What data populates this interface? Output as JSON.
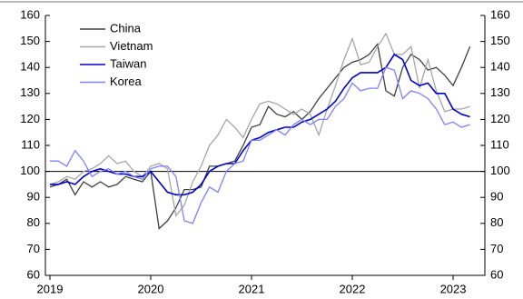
{
  "chart_data": {
    "type": "line",
    "x": [
      2019,
      2019.083,
      2019.167,
      2019.25,
      2019.333,
      2019.417,
      2019.5,
      2019.583,
      2019.667,
      2019.75,
      2019.833,
      2019.917,
      2020,
      2020.083,
      2020.167,
      2020.25,
      2020.333,
      2020.417,
      2020.5,
      2020.583,
      2020.667,
      2020.75,
      2020.833,
      2020.917,
      2021,
      2021.083,
      2021.167,
      2021.25,
      2021.333,
      2021.417,
      2021.5,
      2021.583,
      2021.667,
      2021.75,
      2021.833,
      2021.917,
      2022,
      2022.083,
      2022.167,
      2022.25,
      2022.333,
      2022.417,
      2022.5,
      2022.583,
      2022.667,
      2022.75,
      2022.833,
      2022.917,
      2023,
      2023.083,
      2023.167
    ],
    "series": [
      {
        "name": "China",
        "color": "#404040",
        "values": [
          94,
          95,
          97,
          91,
          96,
          94,
          96,
          94,
          95,
          98,
          97,
          96,
          100,
          78,
          81,
          86,
          93,
          93,
          94,
          102,
          102,
          103,
          104,
          110,
          117,
          118,
          125,
          122,
          121,
          123,
          120,
          123,
          128,
          132,
          136,
          140,
          142,
          143,
          145,
          149,
          131,
          129,
          140,
          145,
          143,
          139,
          140,
          137,
          133,
          140,
          148
        ]
      },
      {
        "name": "Vietnam",
        "color": "#a6a6a6",
        "values": [
          95,
          96,
          98,
          97,
          100,
          101,
          103,
          106,
          103,
          104,
          100,
          98,
          102,
          103,
          101,
          83,
          87,
          96,
          102,
          110,
          114,
          120,
          117,
          113,
          120,
          126,
          127,
          126,
          124,
          122,
          124,
          122,
          114,
          124,
          133,
          143,
          151,
          141,
          142,
          148,
          153,
          145,
          145,
          148,
          132,
          143,
          131,
          123,
          124,
          124,
          125
        ]
      },
      {
        "name": "Taiwan",
        "color": "#0000cc",
        "values": [
          95,
          95,
          96,
          95,
          98,
          100,
          101,
          100,
          99,
          99,
          98,
          98,
          100,
          96,
          92,
          91,
          91,
          92,
          95,
          100,
          102,
          103,
          103,
          108,
          112,
          113,
          115,
          116,
          117,
          117,
          119,
          120,
          122,
          124,
          127,
          132,
          136,
          138,
          138,
          138,
          140,
          145,
          143,
          135,
          133,
          134,
          130,
          130,
          124,
          122,
          121
        ]
      },
      {
        "name": "Korea",
        "color": "#8080ff",
        "values": [
          104,
          104,
          102,
          108,
          104,
          98,
          100,
          101,
          99,
          100,
          98,
          97,
          101,
          102,
          102,
          98,
          81,
          80,
          88,
          94,
          92,
          100,
          103,
          104,
          112,
          112,
          114,
          116,
          114,
          118,
          120,
          118,
          120,
          120,
          125,
          128,
          134,
          131,
          132,
          132,
          140,
          139,
          128,
          131,
          130,
          128,
          124,
          118,
          119,
          117,
          118
        ]
      }
    ],
    "xlim": [
      2018.955,
      2023.315
    ],
    "xticks": [
      2019,
      2020,
      2021,
      2022,
      2023
    ],
    "ylim": [
      60,
      160
    ],
    "yticks": [
      60,
      70,
      80,
      90,
      100,
      110,
      120,
      130,
      140,
      150,
      160
    ],
    "y2lim": [
      60,
      160
    ],
    "y2ticks": [
      60,
      70,
      80,
      90,
      100,
      110,
      120,
      130,
      140,
      150,
      160
    ],
    "reference_line": 100,
    "legend": "top-left"
  }
}
